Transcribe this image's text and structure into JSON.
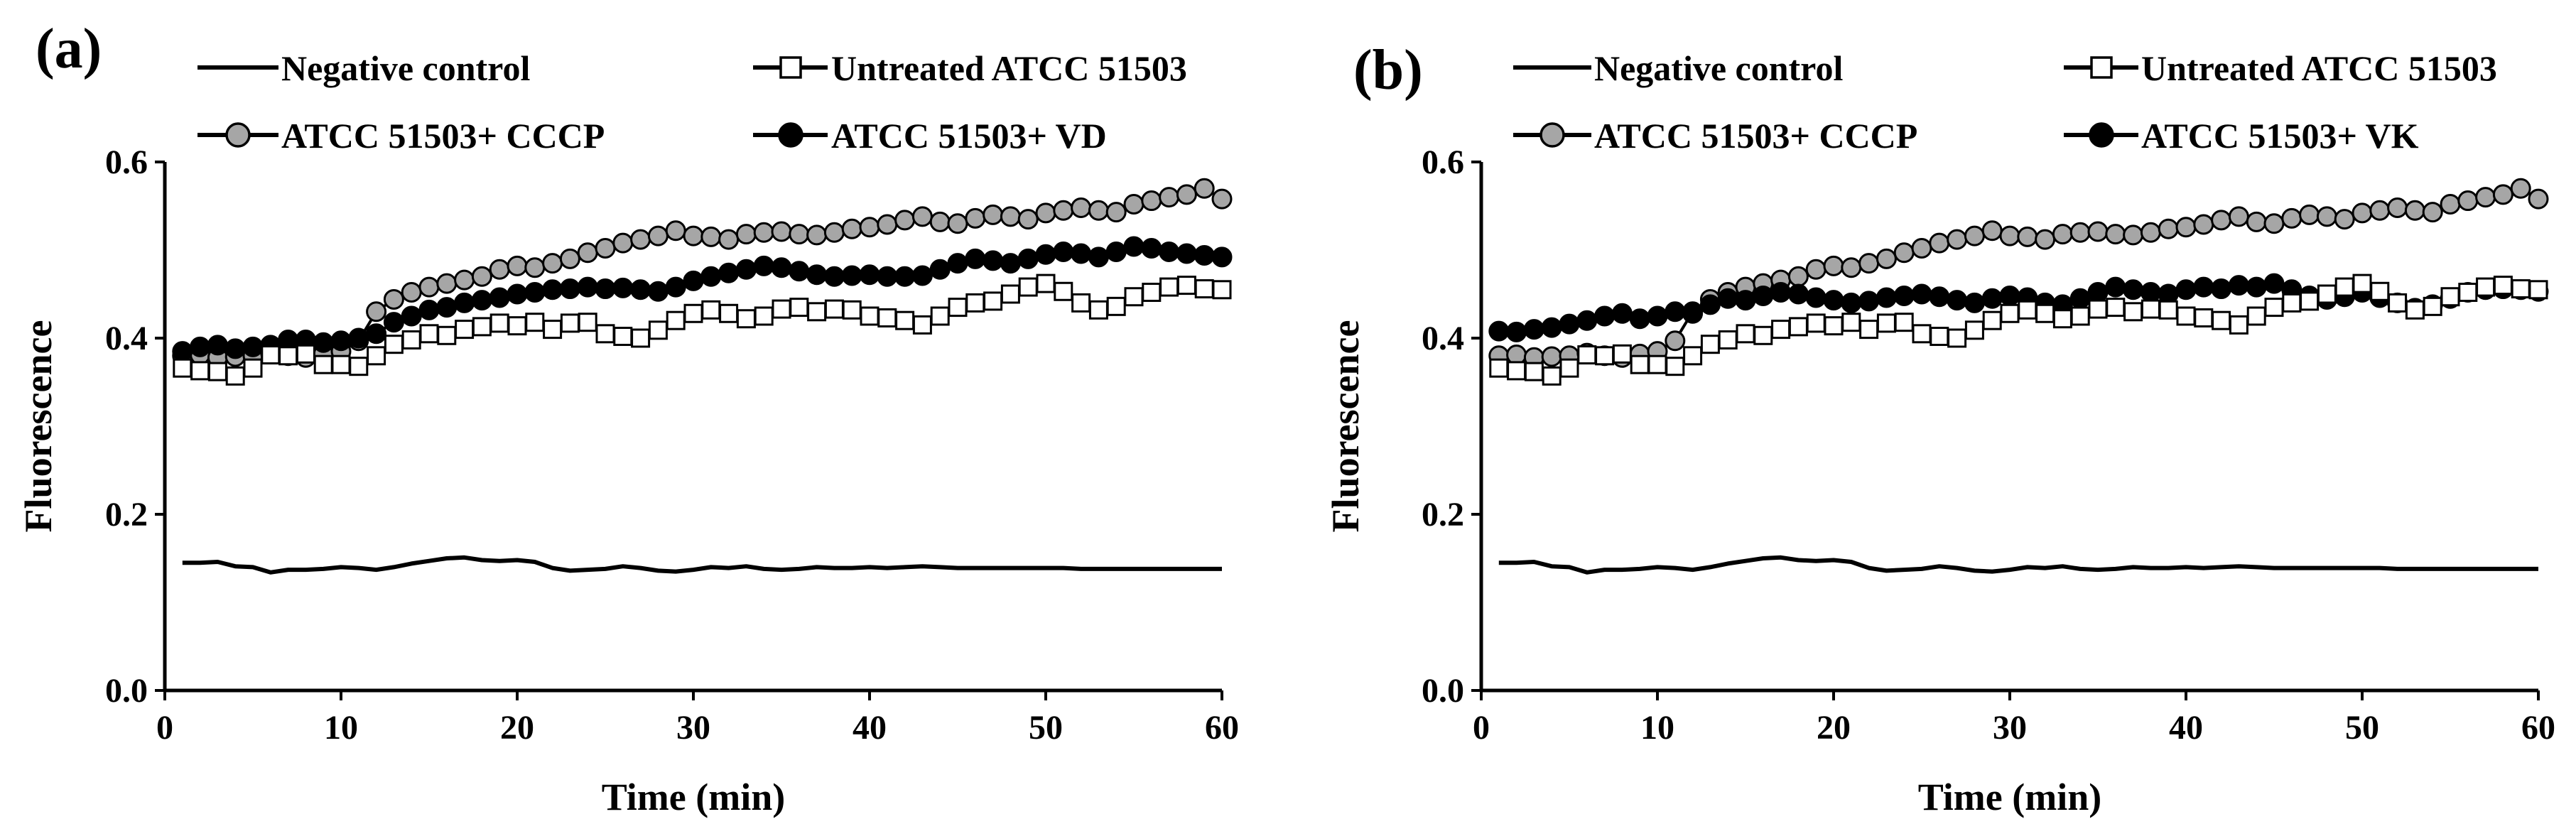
{
  "chart_data": [
    {
      "type": "line",
      "panel_label": "(a)",
      "xlabel": "Time (min)",
      "ylabel": "Fluorescence",
      "xlim": [
        0,
        60
      ],
      "ylim": [
        0,
        0.6
      ],
      "xticks": [
        0,
        10,
        20,
        30,
        40,
        50,
        60
      ],
      "xtick_labels": [
        "0",
        "10",
        "20",
        "30",
        "40",
        "50",
        "60"
      ],
      "yticks": [
        0,
        0.2,
        0.4,
        0.6
      ],
      "ytick_labels": [
        "0.0",
        "0.2",
        "0.4",
        "0.6"
      ],
      "grid": false,
      "legend_position": "top",
      "series": [
        {
          "name": "Negative control",
          "marker": "none",
          "x": [
            1,
            2,
            3,
            4,
            5,
            6,
            7,
            8,
            9,
            10,
            11,
            12,
            13,
            14,
            15,
            16,
            17,
            18,
            19,
            20,
            21,
            22,
            23,
            24,
            25,
            26,
            27,
            28,
            29,
            30,
            31,
            32,
            33,
            34,
            35,
            36,
            37,
            38,
            39,
            40,
            41,
            42,
            43,
            44,
            45,
            46,
            47,
            48,
            49,
            50,
            51,
            52,
            53,
            54,
            55,
            56,
            57,
            58,
            59,
            60
          ],
          "y": [
            0.145,
            0.145,
            0.146,
            0.141,
            0.14,
            0.134,
            0.137,
            0.137,
            0.138,
            0.14,
            0.139,
            0.137,
            0.14,
            0.144,
            0.147,
            0.15,
            0.151,
            0.148,
            0.147,
            0.148,
            0.146,
            0.139,
            0.136,
            0.137,
            0.138,
            0.141,
            0.139,
            0.136,
            0.135,
            0.137,
            0.14,
            0.139,
            0.141,
            0.138,
            0.137,
            0.138,
            0.14,
            0.139,
            0.139,
            0.14,
            0.139,
            0.14,
            0.141,
            0.14,
            0.139,
            0.139,
            0.139,
            0.139,
            0.139,
            0.139,
            0.139,
            0.138,
            0.138,
            0.138,
            0.138,
            0.138,
            0.138,
            0.138,
            0.138,
            0.138
          ]
        },
        {
          "name": "Untreated ATCC 51503",
          "marker": "open-square",
          "x": [
            1,
            2,
            3,
            4,
            5,
            6,
            7,
            8,
            9,
            10,
            11,
            12,
            13,
            14,
            15,
            16,
            17,
            18,
            19,
            20,
            21,
            22,
            23,
            24,
            25,
            26,
            27,
            28,
            29,
            30,
            31,
            32,
            33,
            34,
            35,
            36,
            37,
            38,
            39,
            40,
            41,
            42,
            43,
            44,
            45,
            46,
            47,
            48,
            49,
            50,
            51,
            52,
            53,
            54,
            55,
            56,
            57,
            58,
            59,
            60
          ],
          "y": [
            0.366,
            0.363,
            0.362,
            0.357,
            0.366,
            0.381,
            0.38,
            0.382,
            0.37,
            0.37,
            0.368,
            0.38,
            0.393,
            0.398,
            0.405,
            0.403,
            0.41,
            0.413,
            0.417,
            0.414,
            0.418,
            0.41,
            0.417,
            0.418,
            0.405,
            0.402,
            0.4,
            0.409,
            0.42,
            0.428,
            0.432,
            0.428,
            0.422,
            0.425,
            0.433,
            0.435,
            0.43,
            0.433,
            0.432,
            0.425,
            0.423,
            0.42,
            0.415,
            0.425,
            0.435,
            0.44,
            0.442,
            0.45,
            0.458,
            0.462,
            0.453,
            0.44,
            0.432,
            0.436,
            0.447,
            0.452,
            0.458,
            0.46,
            0.456,
            0.455
          ]
        },
        {
          "name": "ATCC 51503+ CCCP",
          "marker": "gray-circle",
          "x": [
            1,
            2,
            3,
            4,
            5,
            6,
            7,
            8,
            9,
            10,
            11,
            12,
            13,
            14,
            15,
            16,
            17,
            18,
            19,
            20,
            21,
            22,
            23,
            24,
            25,
            26,
            27,
            28,
            29,
            30,
            31,
            32,
            33,
            34,
            35,
            36,
            37,
            38,
            39,
            40,
            41,
            42,
            43,
            44,
            45,
            46,
            47,
            48,
            49,
            50,
            51,
            52,
            53,
            54,
            55,
            56,
            57,
            58,
            59,
            60
          ],
          "y": [
            0.38,
            0.381,
            0.378,
            0.379,
            0.38,
            0.383,
            0.38,
            0.378,
            0.382,
            0.385,
            0.397,
            0.43,
            0.444,
            0.452,
            0.458,
            0.462,
            0.466,
            0.47,
            0.478,
            0.482,
            0.48,
            0.485,
            0.49,
            0.497,
            0.502,
            0.508,
            0.512,
            0.516,
            0.522,
            0.516,
            0.515,
            0.512,
            0.518,
            0.52,
            0.521,
            0.518,
            0.517,
            0.52,
            0.524,
            0.526,
            0.529,
            0.534,
            0.538,
            0.532,
            0.53,
            0.536,
            0.54,
            0.538,
            0.535,
            0.542,
            0.545,
            0.548,
            0.545,
            0.543,
            0.552,
            0.556,
            0.56,
            0.563,
            0.57,
            0.558
          ]
        },
        {
          "name": "ATCC 51503+ VD",
          "marker": "filled-circle",
          "x": [
            1,
            2,
            3,
            4,
            5,
            6,
            7,
            8,
            9,
            10,
            11,
            12,
            13,
            14,
            15,
            16,
            17,
            18,
            19,
            20,
            21,
            22,
            23,
            24,
            25,
            26,
            27,
            28,
            29,
            30,
            31,
            32,
            33,
            34,
            35,
            36,
            37,
            38,
            39,
            40,
            41,
            42,
            43,
            44,
            45,
            46,
            47,
            48,
            49,
            50,
            51,
            52,
            53,
            54,
            55,
            56,
            57,
            58,
            59,
            60
          ],
          "y": [
            0.385,
            0.39,
            0.392,
            0.388,
            0.39,
            0.392,
            0.398,
            0.398,
            0.395,
            0.397,
            0.4,
            0.405,
            0.418,
            0.425,
            0.432,
            0.435,
            0.44,
            0.443,
            0.446,
            0.45,
            0.452,
            0.455,
            0.456,
            0.458,
            0.456,
            0.457,
            0.455,
            0.453,
            0.458,
            0.465,
            0.47,
            0.474,
            0.478,
            0.482,
            0.48,
            0.476,
            0.472,
            0.47,
            0.471,
            0.472,
            0.47,
            0.47,
            0.471,
            0.478,
            0.485,
            0.49,
            0.488,
            0.485,
            0.49,
            0.495,
            0.498,
            0.496,
            0.492,
            0.498,
            0.504,
            0.502,
            0.498,
            0.496,
            0.494,
            0.492
          ]
        }
      ]
    },
    {
      "type": "line",
      "panel_label": "(b)",
      "xlabel": "Time (min)",
      "ylabel": "Fluorescence",
      "xlim": [
        0,
        60
      ],
      "ylim": [
        0,
        0.6
      ],
      "xticks": [
        0,
        10,
        20,
        30,
        40,
        50,
        60
      ],
      "xtick_labels": [
        "0",
        "10",
        "20",
        "30",
        "40",
        "50",
        "60"
      ],
      "yticks": [
        0,
        0.2,
        0.4,
        0.6
      ],
      "ytick_labels": [
        "0.0",
        "0.2",
        "0.4",
        "0.6"
      ],
      "grid": false,
      "legend_position": "top",
      "series": [
        {
          "name": "Negative control",
          "marker": "none",
          "x": [
            1,
            2,
            3,
            4,
            5,
            6,
            7,
            8,
            9,
            10,
            11,
            12,
            13,
            14,
            15,
            16,
            17,
            18,
            19,
            20,
            21,
            22,
            23,
            24,
            25,
            26,
            27,
            28,
            29,
            30,
            31,
            32,
            33,
            34,
            35,
            36,
            37,
            38,
            39,
            40,
            41,
            42,
            43,
            44,
            45,
            46,
            47,
            48,
            49,
            50,
            51,
            52,
            53,
            54,
            55,
            56,
            57,
            58,
            59,
            60
          ],
          "y": [
            0.145,
            0.145,
            0.146,
            0.141,
            0.14,
            0.134,
            0.137,
            0.137,
            0.138,
            0.14,
            0.139,
            0.137,
            0.14,
            0.144,
            0.147,
            0.15,
            0.151,
            0.148,
            0.147,
            0.148,
            0.146,
            0.139,
            0.136,
            0.137,
            0.138,
            0.141,
            0.139,
            0.136,
            0.135,
            0.137,
            0.14,
            0.139,
            0.141,
            0.138,
            0.137,
            0.138,
            0.14,
            0.139,
            0.139,
            0.14,
            0.139,
            0.14,
            0.141,
            0.14,
            0.139,
            0.139,
            0.139,
            0.139,
            0.139,
            0.139,
            0.139,
            0.138,
            0.138,
            0.138,
            0.138,
            0.138,
            0.138,
            0.138,
            0.138,
            0.138
          ]
        },
        {
          "name": "Untreated ATCC 51503",
          "marker": "open-square",
          "x": [
            1,
            2,
            3,
            4,
            5,
            6,
            7,
            8,
            9,
            10,
            11,
            12,
            13,
            14,
            15,
            16,
            17,
            18,
            19,
            20,
            21,
            22,
            23,
            24,
            25,
            26,
            27,
            28,
            29,
            30,
            31,
            32,
            33,
            34,
            35,
            36,
            37,
            38,
            39,
            40,
            41,
            42,
            43,
            44,
            45,
            46,
            47,
            48,
            49,
            50,
            51,
            52,
            53,
            54,
            55,
            56,
            57,
            58,
            59,
            60
          ],
          "y": [
            0.366,
            0.363,
            0.362,
            0.357,
            0.366,
            0.381,
            0.38,
            0.382,
            0.37,
            0.37,
            0.368,
            0.38,
            0.393,
            0.398,
            0.405,
            0.403,
            0.41,
            0.413,
            0.417,
            0.414,
            0.418,
            0.41,
            0.417,
            0.418,
            0.405,
            0.402,
            0.4,
            0.409,
            0.42,
            0.428,
            0.432,
            0.428,
            0.422,
            0.425,
            0.433,
            0.435,
            0.43,
            0.433,
            0.432,
            0.425,
            0.423,
            0.42,
            0.415,
            0.425,
            0.435,
            0.44,
            0.442,
            0.45,
            0.458,
            0.462,
            0.453,
            0.44,
            0.432,
            0.436,
            0.447,
            0.452,
            0.458,
            0.46,
            0.456,
            0.455
          ]
        },
        {
          "name": "ATCC 51503+ CCCP",
          "marker": "gray-circle",
          "x": [
            1,
            2,
            3,
            4,
            5,
            6,
            7,
            8,
            9,
            10,
            11,
            12,
            13,
            14,
            15,
            16,
            17,
            18,
            19,
            20,
            21,
            22,
            23,
            24,
            25,
            26,
            27,
            28,
            29,
            30,
            31,
            32,
            33,
            34,
            35,
            36,
            37,
            38,
            39,
            40,
            41,
            42,
            43,
            44,
            45,
            46,
            47,
            48,
            49,
            50,
            51,
            52,
            53,
            54,
            55,
            56,
            57,
            58,
            59,
            60
          ],
          "y": [
            0.38,
            0.381,
            0.378,
            0.379,
            0.38,
            0.383,
            0.38,
            0.378,
            0.382,
            0.385,
            0.397,
            0.43,
            0.444,
            0.452,
            0.458,
            0.462,
            0.466,
            0.47,
            0.478,
            0.482,
            0.48,
            0.485,
            0.49,
            0.497,
            0.502,
            0.508,
            0.512,
            0.516,
            0.522,
            0.516,
            0.515,
            0.512,
            0.518,
            0.52,
            0.521,
            0.518,
            0.517,
            0.52,
            0.524,
            0.526,
            0.529,
            0.534,
            0.538,
            0.532,
            0.53,
            0.536,
            0.54,
            0.538,
            0.535,
            0.542,
            0.545,
            0.548,
            0.545,
            0.543,
            0.552,
            0.556,
            0.56,
            0.563,
            0.57,
            0.558
          ]
        },
        {
          "name": "ATCC 51503+ VK",
          "marker": "filled-circle",
          "x": [
            1,
            2,
            3,
            4,
            5,
            6,
            7,
            8,
            9,
            10,
            11,
            12,
            13,
            14,
            15,
            16,
            17,
            18,
            19,
            20,
            21,
            22,
            23,
            24,
            25,
            26,
            27,
            28,
            29,
            30,
            31,
            32,
            33,
            34,
            35,
            36,
            37,
            38,
            39,
            40,
            41,
            42,
            43,
            44,
            45,
            46,
            47,
            48,
            49,
            50,
            51,
            52,
            53,
            54,
            55,
            56,
            57,
            58,
            59,
            60
          ],
          "y": [
            0.408,
            0.407,
            0.41,
            0.412,
            0.416,
            0.42,
            0.425,
            0.428,
            0.422,
            0.425,
            0.43,
            0.428,
            0.438,
            0.445,
            0.443,
            0.448,
            0.452,
            0.45,
            0.446,
            0.443,
            0.44,
            0.442,
            0.446,
            0.448,
            0.45,
            0.447,
            0.443,
            0.44,
            0.445,
            0.448,
            0.446,
            0.44,
            0.438,
            0.445,
            0.452,
            0.458,
            0.455,
            0.452,
            0.45,
            0.455,
            0.458,
            0.456,
            0.46,
            0.458,
            0.462,
            0.455,
            0.448,
            0.444,
            0.447,
            0.452,
            0.446,
            0.44,
            0.434,
            0.438,
            0.445,
            0.452,
            0.455,
            0.456,
            0.455,
            0.453
          ]
        }
      ]
    }
  ]
}
